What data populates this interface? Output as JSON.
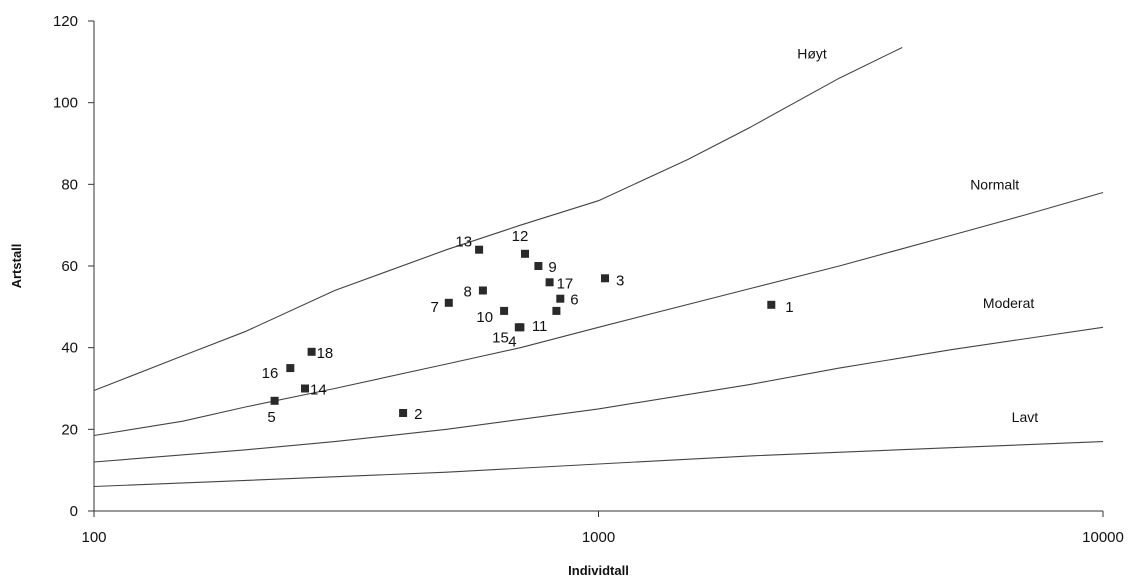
{
  "chart_data": {
    "type": "scatter",
    "title": "",
    "xlabel": "Individtall",
    "ylabel": "Artstall",
    "xscale": "log",
    "xlim": [
      100,
      10000
    ],
    "ylim": [
      0,
      120
    ],
    "xticks": [
      100,
      1000,
      10000
    ],
    "xtick_labels": [
      "100",
      "1000",
      "10000"
    ],
    "yticks": [
      0,
      20,
      40,
      60,
      80,
      100,
      120
    ],
    "ytick_labels": [
      "0",
      "20",
      "40",
      "60",
      "80",
      "100",
      "120"
    ],
    "grid": false,
    "legend": "none",
    "points": [
      {
        "label": "1",
        "x": 2200,
        "y": 50.5
      },
      {
        "label": "2",
        "x": 410,
        "y": 24
      },
      {
        "label": "3",
        "x": 1030,
        "y": 57
      },
      {
        "label": "4",
        "x": 700,
        "y": 45
      },
      {
        "label": "5",
        "x": 228,
        "y": 27
      },
      {
        "label": "6",
        "x": 840,
        "y": 52
      },
      {
        "label": "7",
        "x": 505,
        "y": 51
      },
      {
        "label": "8",
        "x": 590,
        "y": 54
      },
      {
        "label": "9",
        "x": 760,
        "y": 60
      },
      {
        "label": "10",
        "x": 650,
        "y": 49
      },
      {
        "label": "11",
        "x": 825,
        "y": 49
      },
      {
        "label": "12",
        "x": 715,
        "y": 63
      },
      {
        "label": "13",
        "x": 580,
        "y": 64
      },
      {
        "label": "14",
        "x": 262,
        "y": 30
      },
      {
        "label": "15",
        "x": 695,
        "y": 45
      },
      {
        "label": "16",
        "x": 245,
        "y": 35
      },
      {
        "label": "17",
        "x": 800,
        "y": 56
      },
      {
        "label": "18",
        "x": 270,
        "y": 39
      }
    ],
    "curves": [
      {
        "x": [
          100,
          150,
          200,
          300,
          500,
          700,
          1000,
          1500,
          2000,
          3000,
          4000
        ],
        "y": [
          29.5,
          38,
          44,
          54,
          64,
          70,
          76,
          86,
          94,
          106,
          113.5
        ]
      },
      {
        "x": [
          100,
          150,
          200,
          300,
          500,
          700,
          1000,
          2000,
          3000,
          5000,
          7000,
          10000
        ],
        "y": [
          18.5,
          22,
          25.5,
          30,
          36,
          40,
          45,
          54.5,
          60,
          67.5,
          72.5,
          78
        ]
      },
      {
        "x": [
          100,
          200,
          300,
          500,
          1000,
          2000,
          3000,
          5000,
          10000
        ],
        "y": [
          12,
          15,
          17,
          20,
          25,
          31,
          35,
          39.5,
          45
        ]
      },
      {
        "x": [
          100,
          200,
          500,
          1000,
          2000,
          5000,
          10000
        ],
        "y": [
          6,
          7.5,
          9.5,
          11.5,
          13.5,
          15.5,
          17
        ]
      }
    ],
    "region_labels": [
      {
        "text": "Høyt",
        "x": 2650,
        "y": 112
      },
      {
        "text": "Normalt",
        "x": 6100,
        "y": 80
      },
      {
        "text": "Moderat",
        "x": 6500,
        "y": 51
      },
      {
        "text": "Lavt",
        "x": 7000,
        "y": 23
      }
    ]
  }
}
